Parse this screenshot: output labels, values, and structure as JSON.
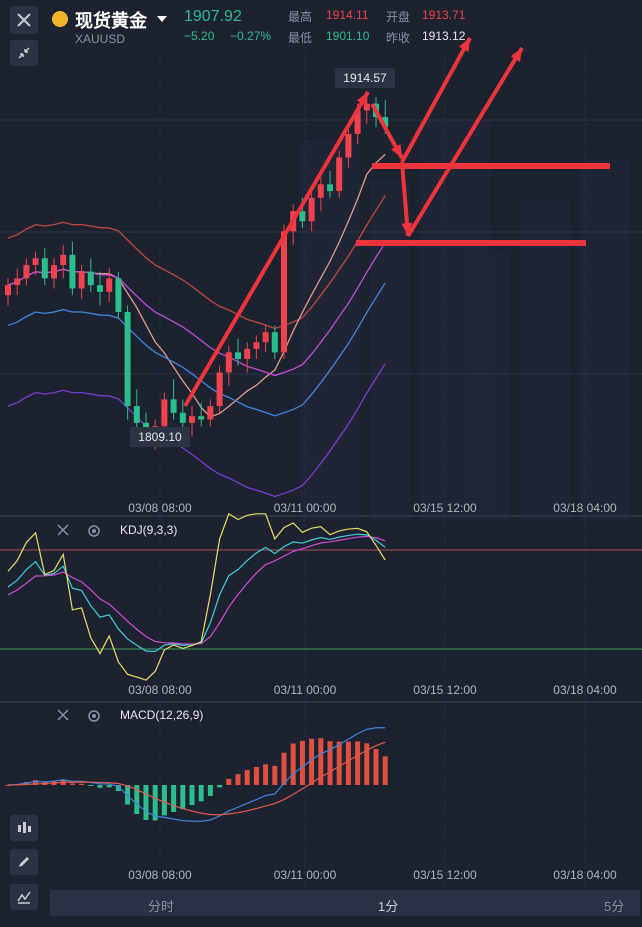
{
  "header": {
    "name": "现货黄金",
    "symbol": "XAUUSD",
    "price": "1907.92",
    "change": "−5.20",
    "change_pct": "−0.27%",
    "high_label": "最高",
    "high": "1914.11",
    "open_label": "开盘",
    "open": "1913.71",
    "low_label": "最低",
    "low": "1901.10",
    "prev_label": "昨收",
    "prev": "1913.12"
  },
  "indicators": {
    "kdj": "KDJ(9,3,3)",
    "macd": "MACD(12,26,9)"
  },
  "tabs": [
    "分时",
    "1分",
    "5分"
  ],
  "chart_data": {
    "type": "candlestick",
    "x_ticks": [
      "03/08 08:00",
      "03/11 00:00",
      "03/15 12:00",
      "03/18 04:00"
    ],
    "price_labels": {
      "max": "1914.57",
      "min": "1809.10"
    },
    "candles": [
      [
        1855,
        1860,
        1852,
        1858
      ],
      [
        1858,
        1863,
        1855,
        1860
      ],
      [
        1860,
        1866,
        1858,
        1864
      ],
      [
        1864,
        1868,
        1861,
        1866
      ],
      [
        1866,
        1869,
        1858,
        1860
      ],
      [
        1860,
        1866,
        1857,
        1864
      ],
      [
        1864,
        1870,
        1860,
        1867
      ],
      [
        1867,
        1871,
        1855,
        1857
      ],
      [
        1857,
        1864,
        1854,
        1862
      ],
      [
        1862,
        1866,
        1856,
        1858
      ],
      [
        1858,
        1862,
        1852,
        1856
      ],
      [
        1856,
        1863,
        1853,
        1860
      ],
      [
        1860,
        1862,
        1848,
        1850
      ],
      [
        1850,
        1852,
        1818,
        1822
      ],
      [
        1822,
        1827,
        1812,
        1817
      ],
      [
        1817,
        1820,
        1810,
        1813
      ],
      [
        1813,
        1818,
        1809,
        1816
      ],
      [
        1816,
        1826,
        1814,
        1824
      ],
      [
        1824,
        1830,
        1818,
        1820
      ],
      [
        1820,
        1824,
        1815,
        1817
      ],
      [
        1817,
        1822,
        1813,
        1819
      ],
      [
        1819,
        1823,
        1816,
        1818
      ],
      [
        1818,
        1824,
        1816,
        1822
      ],
      [
        1822,
        1834,
        1820,
        1832
      ],
      [
        1832,
        1840,
        1828,
        1838
      ],
      [
        1838,
        1842,
        1834,
        1836
      ],
      [
        1836,
        1841,
        1832,
        1839
      ],
      [
        1839,
        1843,
        1836,
        1841
      ],
      [
        1841,
        1846,
        1838,
        1844
      ],
      [
        1844,
        1846,
        1836,
        1838
      ],
      [
        1838,
        1876,
        1836,
        1874
      ],
      [
        1874,
        1882,
        1870,
        1880
      ],
      [
        1880,
        1884,
        1875,
        1877
      ],
      [
        1877,
        1886,
        1874,
        1884
      ],
      [
        1884,
        1890,
        1880,
        1888
      ],
      [
        1888,
        1892,
        1884,
        1886
      ],
      [
        1886,
        1898,
        1884,
        1896
      ],
      [
        1896,
        1905,
        1893,
        1903
      ],
      [
        1903,
        1912,
        1900,
        1910
      ],
      [
        1910,
        1914.57,
        1906,
        1912
      ],
      [
        1912,
        1914,
        1905,
        1908
      ],
      [
        1908,
        1913,
        1903,
        1905
      ]
    ],
    "kdj_range": [
      0,
      100
    ],
    "macd_signed": true
  }
}
